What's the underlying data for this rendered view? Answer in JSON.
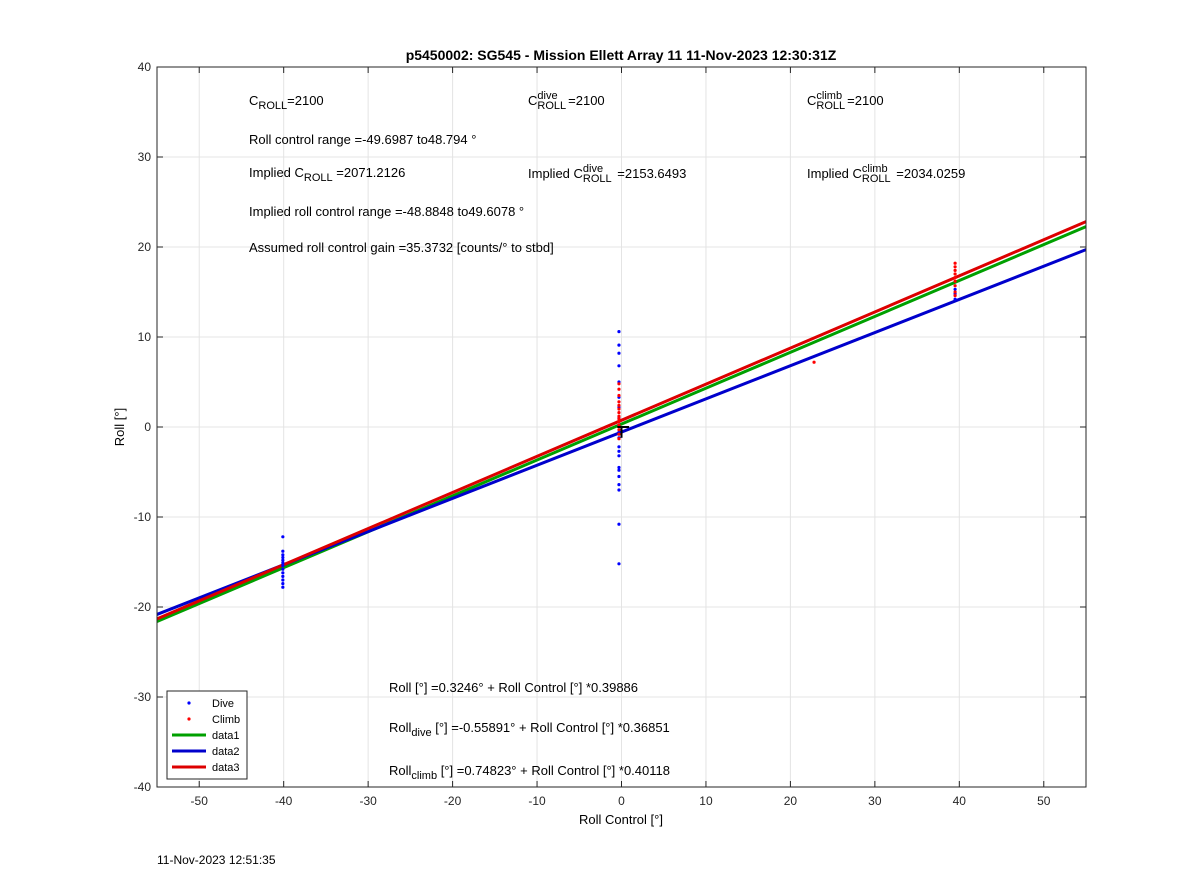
{
  "chart_data": {
    "type": "scatter",
    "title": "p5450002: SG545 - Mission Ellett Array 11 11-Nov-2023 12:30:31Z",
    "xlabel": "Roll Control [°]",
    "ylabel": "Roll [°]",
    "xlim": [
      -55,
      55
    ],
    "ylim": [
      -40,
      40
    ],
    "xticks": [
      -50,
      -40,
      -30,
      -20,
      -10,
      0,
      10,
      20,
      30,
      40,
      50
    ],
    "yticks": [
      -40,
      -30,
      -20,
      -10,
      0,
      10,
      20,
      30,
      40
    ],
    "grid": true,
    "legend_position": "bottom-left",
    "series": [
      {
        "name": "Dive",
        "kind": "points",
        "color": "#0000ff",
        "points": [
          [
            -40.1,
            -12.2
          ],
          [
            -40.1,
            -13.8
          ],
          [
            -40.1,
            -14.2
          ],
          [
            -40.1,
            -14.5
          ],
          [
            -40.1,
            -14.8
          ],
          [
            -40.1,
            -15.1
          ],
          [
            -40.1,
            -15.4
          ],
          [
            -40.1,
            -15.8
          ],
          [
            -40.1,
            -16.2
          ],
          [
            -40.1,
            -16.6
          ],
          [
            -40.1,
            -17.0
          ],
          [
            -40.1,
            -17.4
          ],
          [
            -40.1,
            -17.8
          ],
          [
            -0.3,
            10.6
          ],
          [
            -0.3,
            9.1
          ],
          [
            -0.3,
            8.2
          ],
          [
            -0.3,
            6.8
          ],
          [
            -0.3,
            5.0
          ],
          [
            -0.3,
            3.3
          ],
          [
            -0.3,
            2.2
          ],
          [
            -0.3,
            1.0
          ],
          [
            -0.3,
            0.2
          ],
          [
            -0.3,
            -0.6
          ],
          [
            -0.3,
            -1.2
          ],
          [
            -0.3,
            -2.2
          ],
          [
            -0.3,
            -2.7
          ],
          [
            -0.3,
            -3.2
          ],
          [
            -0.3,
            -4.5
          ],
          [
            -0.3,
            -4.8
          ],
          [
            -0.3,
            -5.5
          ],
          [
            -0.3,
            -6.4
          ],
          [
            -0.3,
            -7.0
          ],
          [
            -0.3,
            -10.8
          ],
          [
            -0.3,
            -15.2
          ],
          [
            39.5,
            14.2
          ],
          [
            39.5,
            14.8
          ],
          [
            39.5,
            15.3
          ]
        ]
      },
      {
        "name": "Climb",
        "kind": "points",
        "color": "#ff0000",
        "points": [
          [
            -0.3,
            4.8
          ],
          [
            -0.3,
            4.2
          ],
          [
            -0.3,
            3.5
          ],
          [
            -0.3,
            2.8
          ],
          [
            -0.3,
            2.4
          ],
          [
            -0.3,
            2.0
          ],
          [
            -0.3,
            1.6
          ],
          [
            -0.3,
            1.2
          ],
          [
            -0.3,
            0.9
          ],
          [
            -0.3,
            0.6
          ],
          [
            -0.3,
            0.2
          ],
          [
            -0.3,
            -0.3
          ],
          [
            -0.3,
            -0.8
          ],
          [
            -0.3,
            -1.3
          ],
          [
            22.8,
            7.2
          ],
          [
            39.5,
            18.2
          ],
          [
            39.5,
            17.8
          ],
          [
            39.5,
            17.4
          ],
          [
            39.5,
            17.0
          ],
          [
            39.5,
            16.6
          ],
          [
            39.5,
            16.2
          ],
          [
            39.5,
            15.7
          ],
          [
            39.5,
            15.0
          ],
          [
            39.5,
            14.6
          ]
        ]
      },
      {
        "name": "data1",
        "kind": "line",
        "color": "#00a000",
        "intercept": 0.3246,
        "slope": 0.39886
      },
      {
        "name": "data2",
        "kind": "line",
        "color": "#0000cc",
        "intercept": -0.55891,
        "slope": 0.36851
      },
      {
        "name": "data3",
        "kind": "line",
        "color": "#dd0000",
        "intercept": 0.74823,
        "slope": 0.40118
      }
    ]
  },
  "annotations": {
    "c_roll": {
      "base": "C",
      "sub": "ROLL",
      "value": "=2100"
    },
    "c_roll_dive": {
      "base": "C",
      "sup": "dive",
      "sub": "ROLL",
      "value": "=2100"
    },
    "c_roll_climb": {
      "base": "C",
      "sup": "climb",
      "sub": "ROLL",
      "value": "=2100"
    },
    "roll_control_range": "Roll control range =-49.6987 to48.794 °",
    "implied_c_roll": {
      "prefix": "Implied C",
      "sub": "ROLL",
      "value": " =2071.2126"
    },
    "implied_c_roll_dive": {
      "prefix": "Implied C",
      "sup": "dive",
      "sub": "ROLL",
      "value": " =2153.6493"
    },
    "implied_c_roll_climb": {
      "prefix": "Implied C",
      "sup": "climb",
      "sub": "ROLL",
      "value": " =2034.0259"
    },
    "implied_range": "Implied roll control range =-48.8848 to49.6078 °",
    "gain": "Assumed roll control gain =35.3732 [counts/° to stbd]",
    "fit_all": "Roll [°] =0.3246° + Roll Control [°] *0.39886",
    "fit_dive": {
      "base": "Roll",
      "sub": "dive",
      "rest": " [°] =-0.55891° + Roll Control [°] *0.36851"
    },
    "fit_climb": {
      "base": "Roll",
      "sub": "climb",
      "rest": " [°] =0.74823° + Roll Control [°] *0.40118"
    }
  },
  "footer_timestamp": "11-Nov-2023 12:51:35"
}
